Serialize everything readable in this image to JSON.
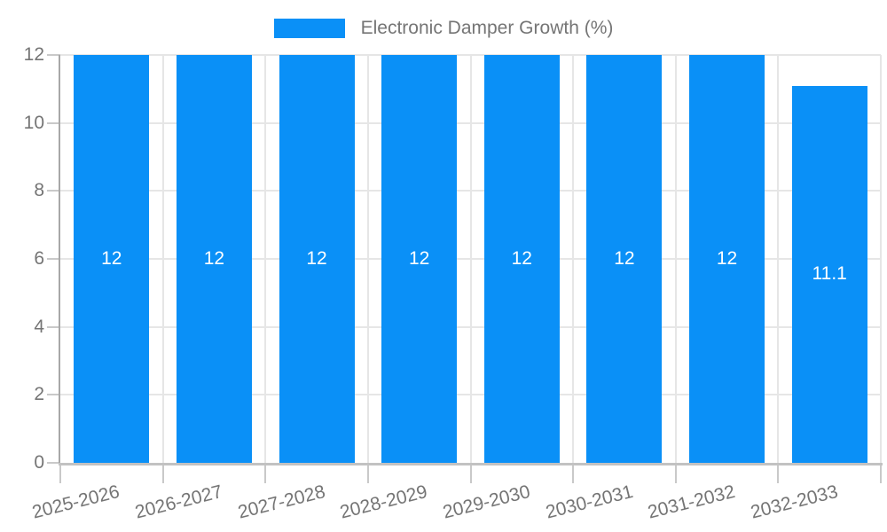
{
  "legend": {
    "label": "Electronic Damper Growth (%)"
  },
  "colors": {
    "bar": "#0a90f7",
    "grid": "#e6e6e6",
    "axis_y": "#a8a8a8",
    "axis_x": "#c2c2c2",
    "tick": "#c9c9c9",
    "label_text": "#757575",
    "value_label": "#ffffff",
    "background": "#ffffff"
  },
  "chart_data": {
    "type": "bar",
    "title": "",
    "series_name": "Electronic Damper Growth (%)",
    "categories": [
      "2025-2026",
      "2026-2027",
      "2027-2028",
      "2028-2029",
      "2029-2030",
      "2030-2031",
      "2031-2032",
      "2032-2033"
    ],
    "values": [
      12,
      12,
      12,
      12,
      12,
      12,
      12,
      11.1
    ],
    "value_labels": [
      "12",
      "12",
      "12",
      "12",
      "12",
      "12",
      "12",
      "11.1"
    ],
    "xlabel": "",
    "ylabel": "",
    "ylim": [
      0,
      12
    ],
    "yticks": [
      0,
      2,
      4,
      6,
      8,
      10,
      12
    ],
    "grid": true,
    "legend_position": "top",
    "x_label_rotation_deg": -14
  }
}
